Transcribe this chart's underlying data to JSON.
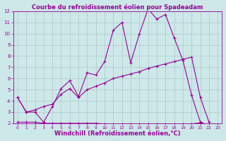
{
  "title": "Courbe du refroidissement éolien pour Spadeadam",
  "xlabel": "Windchill (Refroidissement éolien,°C)",
  "background_color": "#cce8e8",
  "line_color": "#990099",
  "xlim": [
    -0.5,
    23.5
  ],
  "ylim": [
    2,
    12
  ],
  "yticks": [
    2,
    3,
    4,
    5,
    6,
    7,
    8,
    9,
    10,
    11,
    12
  ],
  "xticks": [
    0,
    1,
    2,
    3,
    4,
    5,
    6,
    7,
    8,
    9,
    10,
    11,
    12,
    13,
    14,
    15,
    16,
    17,
    18,
    19,
    20,
    21,
    22,
    23
  ],
  "line1_x": [
    0,
    1,
    2,
    3,
    4,
    5,
    6,
    7,
    8,
    9,
    10,
    11,
    12,
    13,
    14,
    15,
    16,
    17,
    18,
    19,
    20,
    21,
    22
  ],
  "line1_y": [
    4.3,
    3.0,
    3.0,
    2.1,
    3.5,
    5.1,
    5.8,
    4.4,
    6.5,
    6.3,
    7.5,
    10.3,
    11.0,
    7.4,
    10.0,
    12.2,
    11.3,
    11.7,
    9.6,
    7.6,
    4.5,
    2.1,
    1.8
  ],
  "line2_x": [
    0,
    1,
    2,
    3,
    4,
    5,
    6,
    7,
    8,
    9,
    10,
    11,
    12,
    13,
    14,
    15,
    16,
    17,
    18,
    19,
    20,
    21,
    22
  ],
  "line2_y": [
    4.3,
    3.0,
    3.2,
    3.5,
    3.7,
    4.6,
    5.1,
    4.3,
    5.0,
    5.3,
    5.6,
    6.0,
    6.2,
    6.4,
    6.6,
    6.9,
    7.1,
    7.3,
    7.5,
    7.7,
    7.9,
    4.3,
    2.1
  ],
  "line3_x": [
    0,
    1,
    2,
    3,
    4,
    5,
    6,
    7,
    8,
    9,
    10,
    11,
    12,
    13,
    14,
    15,
    16,
    17,
    18,
    19,
    20,
    21,
    22
  ],
  "line3_y": [
    2.1,
    2.1,
    2.1,
    2.0,
    2.0,
    2.0,
    2.0,
    2.0,
    2.0,
    2.0,
    1.95,
    1.95,
    1.95,
    1.95,
    1.95,
    1.95,
    1.95,
    1.95,
    1.95,
    1.95,
    1.95,
    2.05,
    1.85
  ],
  "title_color": "#990099",
  "grid_color": "#b0c8c8",
  "tick_color": "#990099",
  "xlabel_color": "#990099",
  "title_fontsize": 6.0,
  "xlabel_fontsize": 6.0,
  "tick_fontsize_x": 4.5,
  "tick_fontsize_y": 5.0
}
